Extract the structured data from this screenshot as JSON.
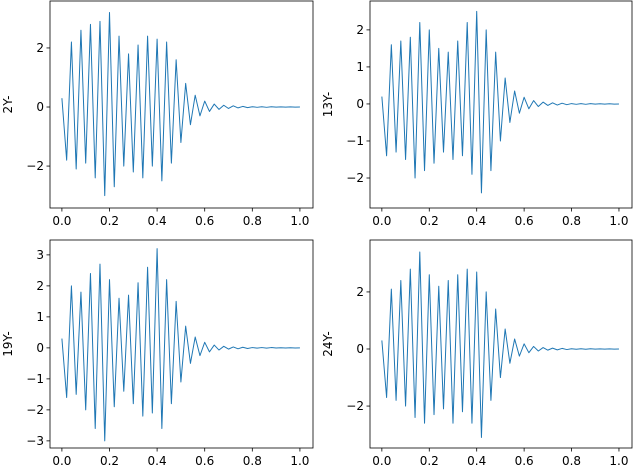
{
  "chart_data": [
    {
      "type": "line",
      "ylabel": "2Y-",
      "color": "#1f77b4",
      "x": [
        0,
        0.02,
        0.04,
        0.06,
        0.08,
        0.1,
        0.12,
        0.14,
        0.16,
        0.18,
        0.2,
        0.22,
        0.24,
        0.26,
        0.28,
        0.3,
        0.32,
        0.34,
        0.36,
        0.38,
        0.4,
        0.42,
        0.44,
        0.46,
        0.48,
        0.5,
        0.52,
        0.54,
        0.56,
        0.58,
        0.6,
        0.62,
        0.64,
        0.66,
        0.68,
        0.7,
        0.72,
        0.74,
        0.76,
        0.78,
        0.8,
        0.82,
        0.84,
        0.86,
        0.88,
        0.9,
        0.92,
        0.94,
        0.96,
        0.98,
        1.0
      ],
      "values": [
        0.3,
        -1.8,
        2.2,
        -2.1,
        2.6,
        -1.9,
        2.8,
        -2.4,
        2.9,
        -3.0,
        3.2,
        -2.7,
        2.4,
        -2.0,
        1.8,
        -2.2,
        2.1,
        -2.4,
        2.4,
        -2.0,
        2.3,
        -2.5,
        2.2,
        -1.9,
        1.6,
        -1.2,
        0.8,
        -0.6,
        0.4,
        -0.3,
        0.2,
        -0.15,
        0.1,
        -0.08,
        0.06,
        -0.05,
        0.04,
        -0.03,
        0.02,
        -0.02,
        0.01,
        -0.01,
        0.01,
        -0.01,
        0.01,
        -0.005,
        0.005,
        -0.005,
        0.005,
        -0.005,
        0
      ],
      "xlim": [
        -0.05,
        1.055
      ],
      "ylim": [
        -3.42,
        3.59
      ],
      "xticks": [
        {
          "value": 0,
          "label": "0.0"
        },
        0.2,
        0.4,
        0.6,
        0.8,
        {
          "value": 1,
          "label": "1.0"
        }
      ],
      "yticks": [
        {
          "value": -2,
          "label": "−2"
        },
        0,
        2
      ]
    },
    {
      "type": "line",
      "ylabel": "13Y-",
      "color": "#1f77b4",
      "x": [
        0,
        0.02,
        0.04,
        0.06,
        0.08,
        0.1,
        0.12,
        0.14,
        0.16,
        0.18,
        0.2,
        0.22,
        0.24,
        0.26,
        0.28,
        0.3,
        0.32,
        0.34,
        0.36,
        0.38,
        0.4,
        0.42,
        0.44,
        0.46,
        0.48,
        0.5,
        0.52,
        0.54,
        0.56,
        0.58,
        0.6,
        0.62,
        0.64,
        0.66,
        0.68,
        0.7,
        0.72,
        0.74,
        0.76,
        0.78,
        0.8,
        0.82,
        0.84,
        0.86,
        0.88,
        0.9,
        0.92,
        0.94,
        0.96,
        0.98,
        1.0
      ],
      "values": [
        0.2,
        -1.4,
        1.6,
        -1.3,
        1.7,
        -1.5,
        1.8,
        -2.0,
        2.2,
        -1.8,
        2.0,
        -1.6,
        1.5,
        -1.3,
        1.4,
        -1.5,
        1.7,
        -1.4,
        2.2,
        -1.9,
        2.5,
        -2.4,
        2.0,
        -1.8,
        1.4,
        -1.0,
        0.7,
        -0.5,
        0.35,
        -0.25,
        0.18,
        -0.13,
        0.09,
        -0.07,
        0.05,
        -0.04,
        0.03,
        -0.03,
        0.02,
        -0.02,
        0.01,
        -0.01,
        0.01,
        -0.01,
        0.01,
        -0.005,
        0.005,
        -0.005,
        0.005,
        -0.005,
        0
      ],
      "xlim": [
        -0.05,
        1.055
      ],
      "ylim": [
        -2.81,
        2.78
      ],
      "xticks": [
        {
          "value": 0,
          "label": "0.0"
        },
        0.2,
        0.4,
        0.6,
        0.8,
        {
          "value": 1,
          "label": "1.0"
        }
      ],
      "yticks": [
        {
          "value": -2,
          "label": "−2"
        },
        {
          "value": -1,
          "label": "−1"
        },
        0,
        1,
        2
      ]
    },
    {
      "type": "line",
      "ylabel": "19Y-",
      "color": "#1f77b4",
      "x": [
        0,
        0.02,
        0.04,
        0.06,
        0.08,
        0.1,
        0.12,
        0.14,
        0.16,
        0.18,
        0.2,
        0.22,
        0.24,
        0.26,
        0.28,
        0.3,
        0.32,
        0.34,
        0.36,
        0.38,
        0.4,
        0.42,
        0.44,
        0.46,
        0.48,
        0.5,
        0.52,
        0.54,
        0.56,
        0.58,
        0.6,
        0.62,
        0.64,
        0.66,
        0.68,
        0.7,
        0.72,
        0.74,
        0.76,
        0.78,
        0.8,
        0.82,
        0.84,
        0.86,
        0.88,
        0.9,
        0.92,
        0.94,
        0.96,
        0.98,
        1.0
      ],
      "values": [
        0.3,
        -1.6,
        2.0,
        -1.5,
        1.8,
        -2.0,
        2.4,
        -2.6,
        2.7,
        -3.0,
        2.2,
        -1.9,
        1.6,
        -1.4,
        1.7,
        -1.8,
        2.1,
        -2.2,
        2.6,
        -2.1,
        3.2,
        -2.6,
        2.2,
        -1.8,
        1.5,
        -1.1,
        0.7,
        -0.5,
        0.35,
        -0.25,
        0.18,
        -0.13,
        0.09,
        -0.07,
        0.05,
        -0.04,
        0.03,
        -0.03,
        0.02,
        -0.02,
        0.01,
        -0.01,
        0.01,
        -0.01,
        0.01,
        -0.005,
        0.005,
        -0.005,
        0.005,
        -0.005,
        0
      ],
      "xlim": [
        -0.05,
        1.055
      ],
      "ylim": [
        -3.23,
        3.48
      ],
      "xticks": [
        {
          "value": 0,
          "label": "0.0"
        },
        0.2,
        0.4,
        0.6,
        0.8,
        {
          "value": 1,
          "label": "1.0"
        }
      ],
      "yticks": [
        {
          "value": -3,
          "label": "−3"
        },
        {
          "value": -2,
          "label": "−2"
        },
        {
          "value": -1,
          "label": "−1"
        },
        0,
        1,
        2,
        3
      ]
    },
    {
      "type": "line",
      "ylabel": "24Y-",
      "color": "#1f77b4",
      "x": [
        0,
        0.02,
        0.04,
        0.06,
        0.08,
        0.1,
        0.12,
        0.14,
        0.16,
        0.18,
        0.2,
        0.22,
        0.24,
        0.26,
        0.28,
        0.3,
        0.32,
        0.34,
        0.36,
        0.38,
        0.4,
        0.42,
        0.44,
        0.46,
        0.48,
        0.5,
        0.52,
        0.54,
        0.56,
        0.58,
        0.6,
        0.62,
        0.64,
        0.66,
        0.68,
        0.7,
        0.72,
        0.74,
        0.76,
        0.78,
        0.8,
        0.82,
        0.84,
        0.86,
        0.88,
        0.9,
        0.92,
        0.94,
        0.96,
        0.98,
        1.0
      ],
      "values": [
        0.3,
        -1.7,
        2.1,
        -1.8,
        2.4,
        -2.0,
        2.8,
        -2.4,
        3.4,
        -2.6,
        2.6,
        -2.3,
        2.2,
        -2.1,
        2.4,
        -2.6,
        2.6,
        -2.2,
        2.8,
        -2.6,
        2.7,
        -3.1,
        2.0,
        -1.8,
        1.4,
        -1.0,
        0.7,
        -0.5,
        0.35,
        -0.25,
        0.18,
        -0.13,
        0.09,
        -0.07,
        0.05,
        -0.04,
        0.03,
        -0.03,
        0.02,
        -0.02,
        0.01,
        -0.01,
        0.01,
        -0.01,
        0.01,
        -0.005,
        0.005,
        -0.005,
        0.005,
        -0.005,
        0
      ],
      "xlim": [
        -0.05,
        1.055
      ],
      "ylim": [
        -3.47,
        3.82
      ],
      "xticks": [
        {
          "value": 0,
          "label": "0.0"
        },
        0.2,
        0.4,
        0.6,
        0.8,
        {
          "value": 1,
          "label": "1.0"
        }
      ],
      "yticks": [
        {
          "value": -2,
          "label": "−2"
        },
        0,
        2
      ]
    }
  ]
}
